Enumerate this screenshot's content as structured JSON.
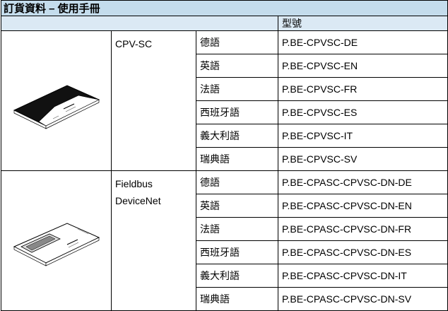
{
  "title": "訂貨資料 – 使用手冊",
  "table": {
    "header": [
      "型號"
    ],
    "groups": [
      {
        "product": [
          "CPV-SC"
        ],
        "rows": [
          [
            "德語",
            "P.BE-CPVSC-DE"
          ],
          [
            "英語",
            "P.BE-CPVSC-EN"
          ],
          [
            "法語",
            "P.BE-CPVSC-FR"
          ],
          [
            "西班牙語",
            "P.BE-CPVSC-ES"
          ],
          [
            "義大利語",
            "P.BE-CPVSC-IT"
          ],
          [
            "瑞典語",
            "P.BE-CPVSC-SV"
          ]
        ]
      },
      {
        "product": [
          "Fieldbus",
          "DeviceNet"
        ],
        "rows": [
          [
            "德語",
            "P.BE-CPASC-CPVSC-DN-DE"
          ],
          [
            "英語",
            "P.BE-CPASC-CPVSC-DN-EN"
          ],
          [
            "法語",
            "P.BE-CPASC-CPVSC-DN-FR"
          ],
          [
            "西班牙語",
            "P.BE-CPASC-CPVSC-DN-ES"
          ],
          [
            "義大利語",
            "P.BE-CPASC-CPVSC-DN-IT"
          ],
          [
            "瑞典語",
            "P.BE-CPASC-CPVSC-DN-SV"
          ]
        ]
      }
    ]
  }
}
